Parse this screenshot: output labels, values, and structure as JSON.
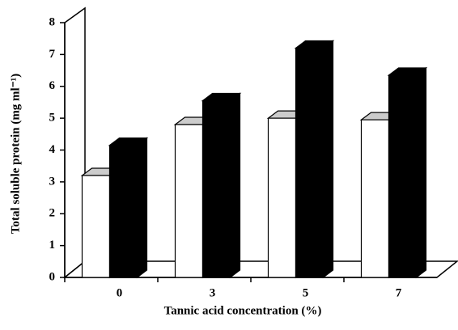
{
  "chart_data": {
    "type": "bar3d",
    "categories": [
      "0",
      "3",
      "5",
      "7"
    ],
    "series": [
      {
        "color": "#ffffff",
        "values": [
          3.2,
          4.8,
          5.0,
          4.95
        ]
      },
      {
        "color": "#000000",
        "values": [
          4.15,
          5.55,
          7.2,
          6.35
        ]
      }
    ],
    "x_label": "Tannic acid concentration (%)",
    "y_label": "Total soluble protein (mg ml⁻¹)",
    "ylim": [
      0,
      8
    ],
    "yticks": [
      0,
      1,
      2,
      3,
      4,
      5,
      6,
      7,
      8
    ]
  }
}
